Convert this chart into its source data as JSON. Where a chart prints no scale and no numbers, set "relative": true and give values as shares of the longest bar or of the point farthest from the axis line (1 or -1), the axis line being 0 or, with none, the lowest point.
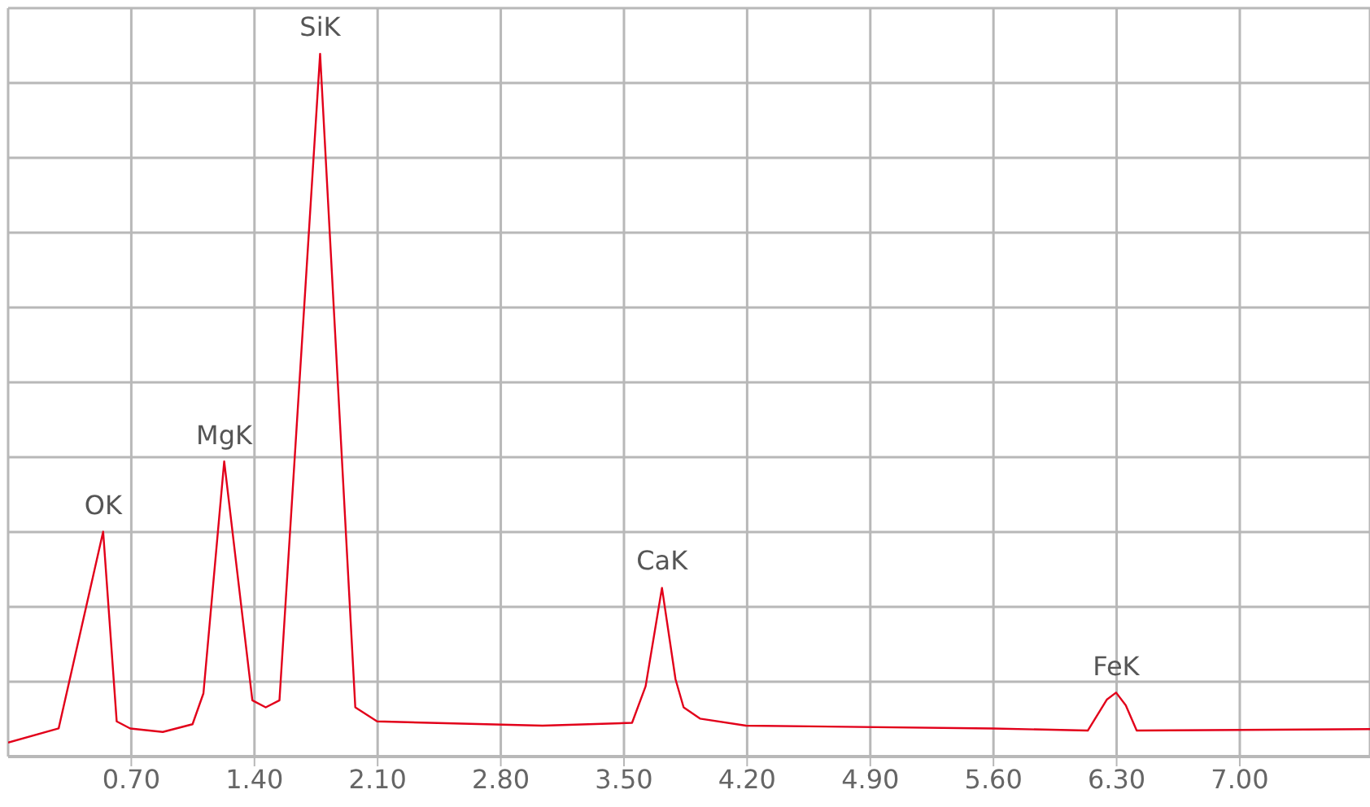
{
  "chart_data": {
    "type": "line",
    "relative": true,
    "xlim": [
      0,
      7.74
    ],
    "xticks": [
      {
        "value": 0.7,
        "label": "0.70"
      },
      {
        "value": 1.4,
        "label": "1.40"
      },
      {
        "value": 2.1,
        "label": "2.10"
      },
      {
        "value": 2.8,
        "label": "2.80"
      },
      {
        "value": 3.5,
        "label": "3.50"
      },
      {
        "value": 4.2,
        "label": "4.20"
      },
      {
        "value": 4.9,
        "label": "4.90"
      },
      {
        "value": 5.6,
        "label": "5.60"
      },
      {
        "value": 6.3,
        "label": "6.30"
      },
      {
        "value": 7.0,
        "label": "7.00"
      }
    ],
    "grid": true,
    "marker": "none",
    "line_style": "solid",
    "series": [
      {
        "color": "#e2001a",
        "x": [
          0,
          0.287,
          0.54,
          0.617,
          0.694,
          0.879,
          1.048,
          1.11,
          1.228,
          1.388,
          1.464,
          1.542,
          1.773,
          1.973,
          2.097,
          3.037,
          3.546,
          3.623,
          3.716,
          3.793,
          3.839,
          3.932,
          4.194,
          5.597,
          6.136,
          6.244,
          6.297,
          6.352,
          6.414,
          7.74
        ],
        "values": [
          0.02,
          0.04,
          0.32,
          0.05,
          0.04,
          0.035,
          0.046,
          0.09,
          0.42,
          0.08,
          0.07,
          0.08,
          1.0,
          0.07,
          0.05,
          0.044,
          0.048,
          0.1,
          0.24,
          0.11,
          0.07,
          0.054,
          0.044,
          0.04,
          0.037,
          0.081,
          0.091,
          0.073,
          0.037,
          0.039
        ]
      }
    ],
    "annotations": [
      {
        "text": "OK",
        "x": 0.54,
        "y": 0.32
      },
      {
        "text": "MgK",
        "x": 1.228,
        "y": 0.42
      },
      {
        "text": "SiK",
        "x": 1.773,
        "y": 1.0
      },
      {
        "text": "CaK",
        "x": 3.716,
        "y": 0.24
      },
      {
        "text": "FeK",
        "x": 6.297,
        "y": 0.091
      }
    ]
  }
}
